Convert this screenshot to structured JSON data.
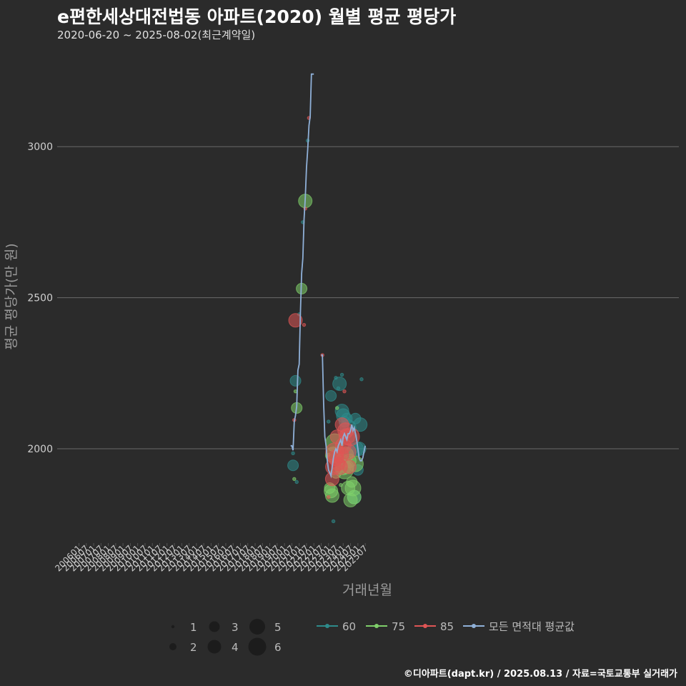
{
  "title": "e편한세상대전법동 아파트(2020) 월별 평균 평당가",
  "subtitle": "2020-06-20 ~ 2025-08-02(최근계약일)",
  "caption": "©디아파트(dapt.kr) / 2025.08.13 / 자료=국토교통부 실거래가",
  "colors": {
    "background": "#2b2b2b",
    "grid": "#6a6a6a",
    "s60": "#2e8b8b",
    "s75": "#7fcf6a",
    "s85": "#e05555",
    "avg": "#8fb0d8"
  },
  "chart_data": {
    "type": "scatter",
    "title": "e편한세상대전법동 아파트(2020) 월별 평균 평당가",
    "xlabel": "거래년월",
    "ylabel": "평균 평당가(만 원)",
    "yticks": [
      2000,
      2500,
      3000
    ],
    "ylim": [
      1700,
      3300
    ],
    "xticks": [
      "200601",
      "200607",
      "200701",
      "200707",
      "200801",
      "200807",
      "200901",
      "200907",
      "201001",
      "201007",
      "201101",
      "201107",
      "201201",
      "201207",
      "201301",
      "201307",
      "201401",
      "201407",
      "201501",
      "201507",
      "201601",
      "201607",
      "201701",
      "201707",
      "201801",
      "201807",
      "201901",
      "201907",
      "202001",
      "202007",
      "202101",
      "202107",
      "202201",
      "202207",
      "202301",
      "202307",
      "202401",
      "202407",
      "202501",
      "202507"
    ],
    "size_legend": {
      "values": [
        1,
        2,
        3,
        4,
        5,
        6
      ]
    },
    "series_legend": [
      "60",
      "75",
      "85",
      "모든 면적대 평균값"
    ],
    "avg_line": [
      [
        "202006",
        2010
      ],
      [
        "202007",
        2010
      ],
      [
        "202008",
        1995
      ],
      [
        "202009",
        2090
      ],
      [
        "202010",
        2110
      ],
      [
        "202011",
        2140
      ],
      [
        "202012",
        2260
      ],
      [
        "202101",
        2280
      ],
      [
        "202102",
        2450
      ],
      [
        "202103",
        2580
      ],
      [
        "202104",
        2630
      ],
      [
        "202105",
        2760
      ],
      [
        "202106",
        2830
      ],
      [
        "202107",
        2930
      ],
      [
        "202108",
        2990
      ],
      [
        "202109",
        3070
      ],
      [
        "202110",
        3100
      ],
      [
        "202111",
        3240
      ],
      [
        "202112",
        3240
      ],
      [
        "202201",
        3240
      ],
      null,
      [
        "202207",
        2310
      ],
      [
        "202208",
        2310
      ],
      [
        "202209",
        2150
      ],
      [
        "202210",
        2040
      ],
      [
        "202211",
        2010
      ],
      [
        "202212",
        1960
      ],
      [
        "202301",
        1930
      ],
      [
        "202302",
        1920
      ],
      [
        "202303",
        1910
      ],
      [
        "202304",
        1940
      ],
      [
        "202305",
        1970
      ],
      [
        "202306",
        1990
      ],
      [
        "202307",
        2000
      ],
      [
        "202308",
        1990
      ],
      [
        "202309",
        2010
      ],
      [
        "202310",
        2020
      ],
      [
        "202311",
        2030
      ],
      [
        "202312",
        2010
      ],
      [
        "202401",
        2040
      ],
      [
        "202402",
        2050
      ],
      [
        "202403",
        2040
      ],
      [
        "202404",
        2030
      ],
      [
        "202405",
        2050
      ],
      [
        "202406",
        2050
      ],
      [
        "202407",
        2060
      ],
      [
        "202408",
        2080
      ],
      [
        "202409",
        2060
      ],
      [
        "202410",
        2070
      ],
      [
        "202411",
        2050
      ],
      [
        "202412",
        2030
      ],
      [
        "202501",
        2000
      ],
      [
        "202502",
        1970
      ],
      [
        "202503",
        1960
      ],
      [
        "202504",
        1960
      ],
      [
        "202505",
        1970
      ],
      [
        "202506",
        1990
      ],
      [
        "202507",
        2010
      ]
    ],
    "points": {
      "60": [
        [
          "202008",
          1985,
          1
        ],
        [
          "202008",
          1945,
          3
        ],
        [
          "202010",
          2225,
          3
        ],
        [
          "202011",
          1890,
          1
        ],
        [
          "202101",
          2445,
          1
        ],
        [
          "202104",
          2750,
          1
        ],
        [
          "202108",
          3020,
          1
        ],
        [
          "202301",
          2090,
          1
        ],
        [
          "202303",
          2175,
          3
        ],
        [
          "202305",
          1760,
          1
        ],
        [
          "202307",
          2235,
          1
        ],
        [
          "202309",
          2200,
          1
        ],
        [
          "202309",
          1990,
          3
        ],
        [
          "202310",
          2215,
          4
        ],
        [
          "202312",
          2245,
          1
        ],
        [
          "202312",
          2125,
          4
        ],
        [
          "202401",
          2110,
          4
        ],
        [
          "202402",
          2090,
          3
        ],
        [
          "202403",
          2050,
          3
        ],
        [
          "202404",
          2100,
          3
        ],
        [
          "202405",
          2070,
          5
        ],
        [
          "202406",
          1850,
          1
        ],
        [
          "202407",
          1990,
          3
        ],
        [
          "202408",
          2040,
          3
        ],
        [
          "202409",
          2000,
          3
        ],
        [
          "202410",
          1840,
          4
        ],
        [
          "202411",
          2100,
          3
        ],
        [
          "202412",
          2000,
          4
        ],
        [
          "202501",
          1930,
          3
        ],
        [
          "202502",
          2000,
          4
        ],
        [
          "202503",
          2080,
          4
        ],
        [
          "202504",
          2230,
          1
        ]
      ],
      "75": [
        [
          "202009",
          1900,
          1
        ],
        [
          "202010",
          2190,
          1
        ],
        [
          "202011",
          2135,
          3
        ],
        [
          "202103",
          2530,
          3
        ],
        [
          "202106",
          2820,
          4
        ],
        [
          "202212",
          1975,
          1
        ],
        [
          "202301",
          1980,
          1
        ],
        [
          "202302",
          1870,
          3
        ],
        [
          "202303",
          1860,
          4
        ],
        [
          "202304",
          1845,
          4
        ],
        [
          "202305",
          1980,
          5
        ],
        [
          "202306",
          2020,
          6
        ],
        [
          "202307",
          1920,
          3
        ],
        [
          "202308",
          2135,
          1
        ],
        [
          "202311",
          1880,
          1
        ],
        [
          "202312",
          1960,
          4
        ],
        [
          "202401",
          1940,
          5
        ],
        [
          "202402",
          1930,
          6
        ],
        [
          "202403",
          1980,
          5
        ],
        [
          "202404",
          1940,
          4
        ],
        [
          "202405",
          1870,
          4
        ],
        [
          "202406",
          1960,
          4
        ],
        [
          "202407",
          1830,
          4
        ],
        [
          "202408",
          1890,
          3
        ],
        [
          "202409",
          1870,
          5
        ],
        [
          "202410",
          1840,
          4
        ],
        [
          "202411",
          1950,
          5
        ]
      ],
      "85": [
        [
          "202009",
          2095,
          1
        ],
        [
          "202010",
          2425,
          4
        ],
        [
          "202105",
          2410,
          1
        ],
        [
          "202106",
          2795,
          1
        ],
        [
          "202109",
          3095,
          1
        ],
        [
          "202208",
          2310,
          1
        ],
        [
          "202301",
          1840,
          1
        ],
        [
          "202304",
          1900,
          4
        ],
        [
          "202305",
          1940,
          5
        ],
        [
          "202306",
          1990,
          6
        ],
        [
          "202307",
          1970,
          5
        ],
        [
          "202308",
          2040,
          4
        ],
        [
          "202309",
          1950,
          4
        ],
        [
          "202310",
          1940,
          5
        ],
        [
          "202311",
          1980,
          5
        ],
        [
          "202312",
          2080,
          4
        ],
        [
          "202401",
          2010,
          5
        ],
        [
          "202402",
          2190,
          1
        ],
        [
          "202403",
          2060,
          5
        ],
        [
          "202404",
          2040,
          5
        ],
        [
          "202405",
          1990,
          5
        ],
        [
          "202406",
          1940,
          4
        ],
        [
          "202407",
          2040,
          6
        ]
      ]
    }
  }
}
